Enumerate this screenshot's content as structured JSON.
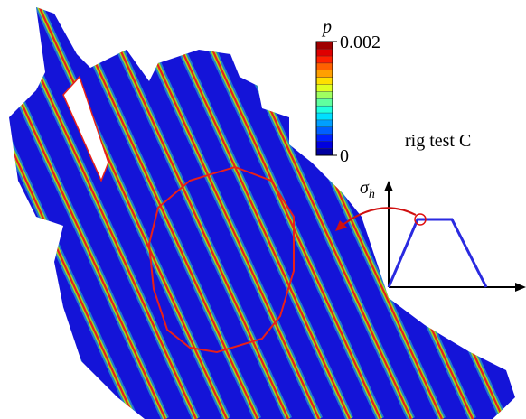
{
  "colorbar": {
    "label": "p",
    "lim": [
      0,
      0.002
    ],
    "ticks": [
      0.002,
      0
    ]
  },
  "annotation": "rig test C",
  "inset": {
    "y_axis_label": {
      "symbol": "σ",
      "subscript": "h"
    }
  }
}
